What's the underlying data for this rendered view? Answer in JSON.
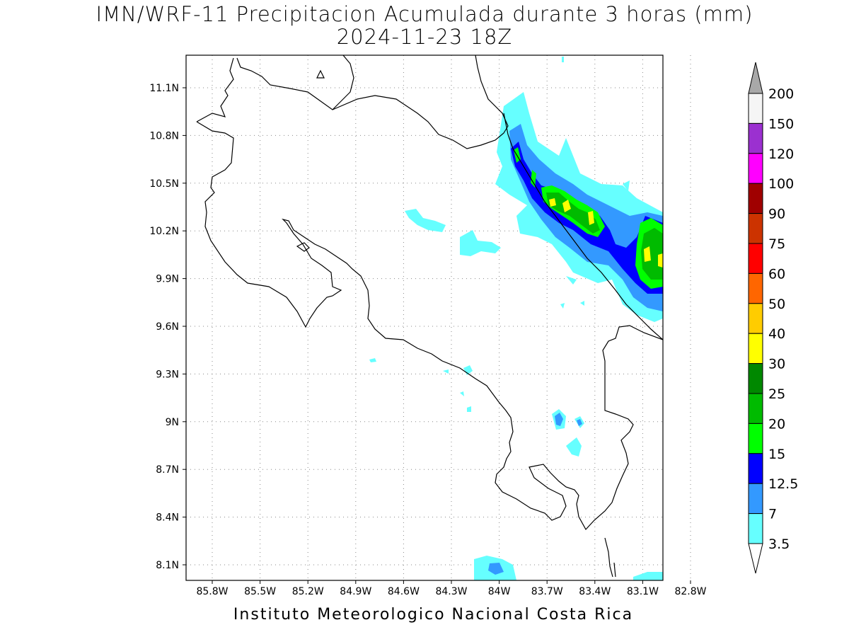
{
  "title_line1": "IMN/WRF-11 Precipitacion Acumulada durante 3 horas (mm)",
  "title_line2": "2024-11-23 18Z",
  "footer": "Instituto Meteorologico Nacional Costa Rica",
  "map": {
    "lon_labels": [
      "85.8W",
      "85.5W",
      "85.2W",
      "84.9W",
      "84.6W",
      "84.3W",
      "84W",
      "83.7W",
      "83.4W",
      "83.1W",
      "82.8W"
    ],
    "lat_labels": [
      "11.1N",
      "10.8N",
      "10.5N",
      "10.2N",
      "9.9N",
      "9.6N",
      "9.3N",
      "9N",
      "8.7N",
      "8.4N",
      "8.1N"
    ]
  },
  "colorbar": {
    "labels": [
      "200",
      "150",
      "120",
      "100",
      "90",
      "75",
      "60",
      "50",
      "40",
      "30",
      "25",
      "20",
      "15",
      "12.5",
      "7",
      "3.5"
    ],
    "colors": [
      "#f5f5f5",
      "#9b30d0",
      "#ff00ff",
      "#a00000",
      "#cc3300",
      "#ff0000",
      "#ff6600",
      "#ffcc00",
      "#ffff00",
      "#008800",
      "#00bb00",
      "#00ff00",
      "#0000ff",
      "#3399ff",
      "#66ffff"
    ],
    "over_color": "#a8a8a8",
    "under_color": "#ffffff"
  },
  "colors": {
    "light_cyan": "#66ffff",
    "sky_blue": "#3399ff",
    "blue": "#0000ff",
    "green": "#00ff00",
    "mid_green": "#00bb00",
    "yellow": "#ffff00"
  }
}
